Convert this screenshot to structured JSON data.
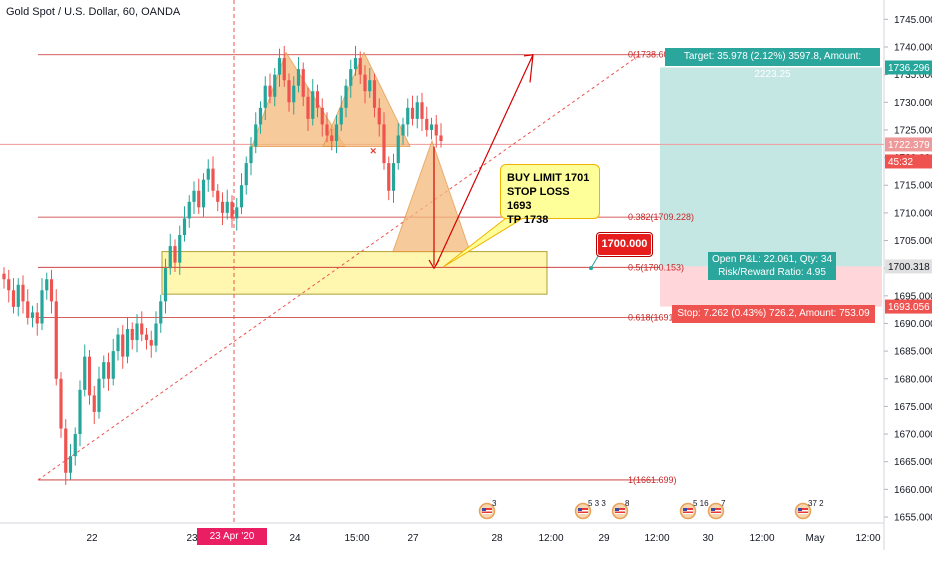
{
  "header": {
    "title": "Gold Spot / U.S. Dollar, 60, OANDA"
  },
  "colors": {
    "up": "#26a69a",
    "down": "#ef5350",
    "fib_line": "#c62828",
    "target_zone": "#b2dfdb",
    "stop_zone": "#ffcdd2",
    "pattern": "#f5b97a",
    "demand_zone": "#fff59d",
    "current_price": "#ef9a9a"
  },
  "chart_data": {
    "type": "candlestick",
    "title": "Gold Spot / U.S. Dollar, 60, OANDA",
    "ylim": [
      1653,
      1749
    ],
    "y_ticks": [
      1655,
      1660,
      1665,
      1670,
      1675,
      1680,
      1685,
      1690,
      1695,
      1700,
      1705,
      1710,
      1715,
      1720,
      1725,
      1730,
      1735,
      1740,
      1745
    ],
    "x_tick_labels": [
      "22",
      "23",
      "24",
      "15:00",
      "27",
      "28",
      "12:00",
      "29",
      "12:00",
      "30",
      "12:00",
      "May",
      "12:00"
    ],
    "closes": [
      1698,
      1696,
      1693,
      1697,
      1694,
      1691,
      1692,
      1690,
      1696,
      1698,
      1694,
      1680,
      1671,
      1663,
      1666,
      1670,
      1678,
      1684,
      1677,
      1674,
      1680,
      1683,
      1680,
      1685,
      1688,
      1684,
      1689,
      1687,
      1690,
      1688,
      1687,
      1686,
      1690,
      1694,
      1700,
      1704,
      1701,
      1706,
      1709,
      1712,
      1714,
      1711,
      1716,
      1718,
      1714,
      1712,
      1710,
      1712,
      1709,
      1711,
      1715,
      1719,
      1722,
      1726,
      1729,
      1733,
      1731,
      1735,
      1738,
      1734,
      1730,
      1733,
      1736,
      1731,
      1727,
      1732,
      1729,
      1726,
      1724,
      1723,
      1726,
      1729,
      1733,
      1736,
      1738,
      1735,
      1732,
      1734,
      1729,
      1726,
      1719,
      1714,
      1719,
      1724,
      1726,
      1729,
      1727,
      1730,
      1727,
      1725,
      1726,
      1724,
      1723
    ],
    "fib_levels": [
      {
        "label": "0(1738.60)",
        "price": 1738.6
      },
      {
        "label": "0.382(1709.228)",
        "price": 1709.228
      },
      {
        "label": "0.5(1700.153)",
        "price": 1700.153
      },
      {
        "label": "0.618(1691.",
        "price": 1691.08
      },
      {
        "label": "1(1661.699)",
        "price": 1661.699
      }
    ],
    "annotations": [
      "BUY LIMIT 1701",
      "STOP LOSS 1693",
      "TP 1738"
    ],
    "entry_price": "1700.000",
    "target_label": "Target: 35.978 (2.12%) 3597.8, Amount: 2223.25",
    "stop_label": "Stop: 7.262 (0.43%) 726.2, Amount: 753.09",
    "pnl_label": "Open P&L: 22.061, Qty: 34",
    "rr_label": "Risk/Reward Ratio: 4.95",
    "axis_tags": [
      {
        "text": "1736.296",
        "price": 1736.296,
        "color": "#26a69a"
      },
      {
        "text": "1722.379",
        "price": 1722.379,
        "color": "#ef9a9a"
      },
      {
        "text": "45:32",
        "price": 1719.3,
        "color": "#ef5350"
      },
      {
        "text": "1700.318",
        "price": 1700.318,
        "color": "#e0e0e0"
      },
      {
        "text": "1693.056",
        "price": 1693.056,
        "color": "#ef5350"
      }
    ],
    "date_marker": "23 Apr '20   10:00",
    "event_counts": [
      "3",
      "5",
      "3",
      "3",
      "8",
      "5",
      "16",
      "7",
      "37",
      "2"
    ]
  }
}
